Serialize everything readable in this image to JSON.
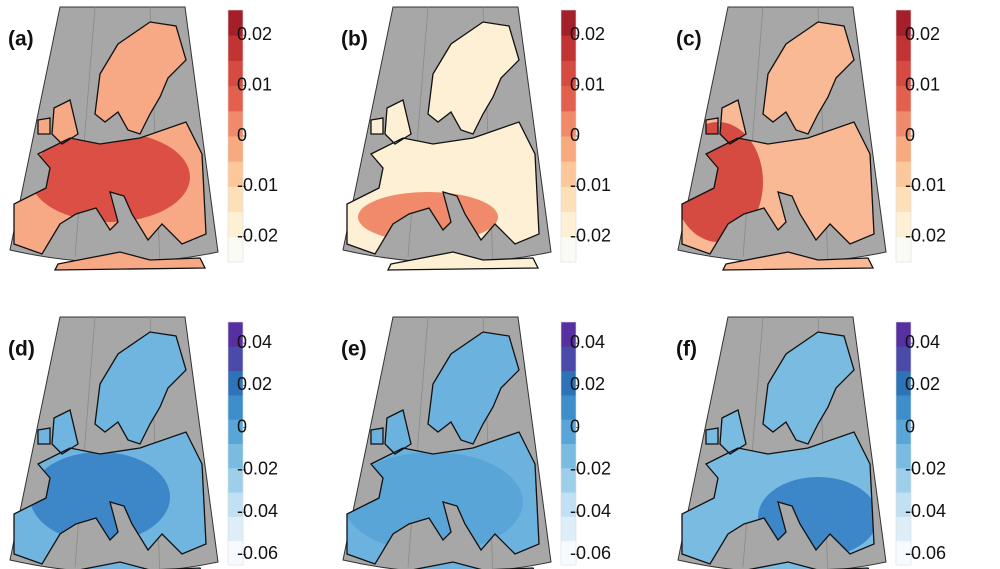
{
  "panels": [
    {
      "label": "(a)",
      "colorbar": {
        "lim": [
          -0.025,
          0.025
        ],
        "ticks": [
          0.02,
          0.01,
          0,
          -0.01,
          -0.02
        ],
        "colors": [
          "#fbfbf5",
          "#fdf0d5",
          "#fde0b8",
          "#fcc79a",
          "#f9a97e",
          "#f08a6a",
          "#e4604e",
          "#d54a41",
          "#c23434",
          "#a51f2a"
        ]
      },
      "land": [
        "#f7a985",
        "#dc4f45"
      ]
    },
    {
      "label": "(b)",
      "colorbar": {
        "lim": [
          -0.025,
          0.025
        ],
        "ticks": [
          0.02,
          0.01,
          0,
          -0.01,
          -0.02
        ],
        "colors": [
          "#fbfbf5",
          "#fdf0d5",
          "#fde0b8",
          "#fcc79a",
          "#f9a97e",
          "#f08a6a",
          "#e4604e",
          "#d54a41",
          "#c23434",
          "#a51f2a"
        ]
      },
      "land": [
        "#fdf0d5",
        "#f08a6a"
      ]
    },
    {
      "label": "(c)",
      "colorbar": {
        "lim": [
          -0.025,
          0.025
        ],
        "ticks": [
          0.02,
          0.01,
          0,
          -0.01,
          -0.02
        ],
        "colors": [
          "#fbfbf5",
          "#fdf0d5",
          "#fde0b8",
          "#fcc79a",
          "#f9a97e",
          "#f08a6a",
          "#e4604e",
          "#d54a41",
          "#c23434",
          "#a51f2a"
        ]
      },
      "land": [
        "#f9b995",
        "#d54a41"
      ]
    },
    {
      "label": "(d)",
      "colorbar": {
        "lim": [
          -0.065,
          0.05
        ],
        "ticks": [
          0.04,
          0.02,
          0,
          -0.02,
          -0.04,
          -0.06
        ],
        "colors": [
          "#f7fbff",
          "#ddeef9",
          "#c1e0f3",
          "#9ecfea",
          "#79bbe1",
          "#5aa5d7",
          "#3d8ecb",
          "#2d73b8",
          "#4a4aa8",
          "#5630a0"
        ]
      },
      "land": [
        "#6fb5e0",
        "#3d86c8"
      ]
    },
    {
      "label": "(e)",
      "colorbar": {
        "lim": [
          -0.065,
          0.05
        ],
        "ticks": [
          0.04,
          0.02,
          0,
          -0.02,
          -0.04,
          -0.06
        ],
        "colors": [
          "#f7fbff",
          "#ddeef9",
          "#c1e0f3",
          "#9ecfea",
          "#79bbe1",
          "#5aa5d7",
          "#3d8ecb",
          "#2d73b8",
          "#4a4aa8",
          "#5630a0"
        ]
      },
      "land": [
        "#6cb2de",
        "#5aa5d7"
      ]
    },
    {
      "label": "(f)",
      "colorbar": {
        "lim": [
          -0.065,
          0.05
        ],
        "ticks": [
          0.04,
          0.02,
          0,
          -0.02,
          -0.04,
          -0.06
        ],
        "colors": [
          "#f7fbff",
          "#ddeef9",
          "#c1e0f3",
          "#9ecfea",
          "#79bbe1",
          "#5aa5d7",
          "#3d8ecb",
          "#2d73b8",
          "#4a4aa8",
          "#5630a0"
        ]
      },
      "land": [
        "#79bbe1",
        "#3d86c8"
      ]
    }
  ]
}
